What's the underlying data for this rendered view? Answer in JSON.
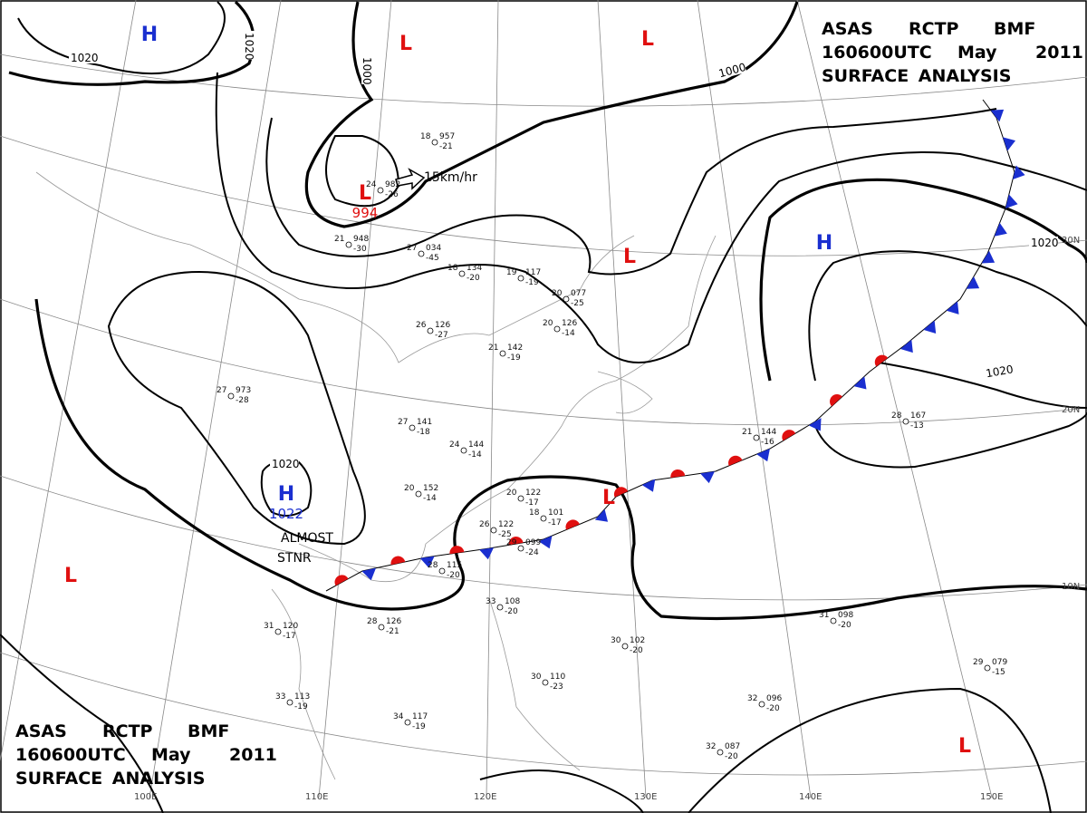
{
  "header_top": {
    "line1": [
      "ASAS",
      "RCTP",
      "BMF"
    ],
    "line2": [
      "160600UTC",
      "May",
      "2011"
    ],
    "line3": "SURFACE ANALYSIS"
  },
  "header_bottom": {
    "line1": [
      "ASAS",
      "RCTP",
      "BMF"
    ],
    "line2": [
      "160600UTC",
      "May",
      "2011"
    ],
    "line3": "SURFACE ANALYSIS"
  },
  "longitudes": [
    "100E",
    "110E",
    "120E",
    "130E",
    "140E",
    "150E"
  ],
  "latitudes": [
    "30N",
    "20N",
    "10N"
  ],
  "isobar_labels": [
    "1020",
    "1020",
    "1000",
    "1000",
    "1020",
    "1020",
    "1020"
  ],
  "centers": [
    {
      "symbol": "H"
    },
    {
      "symbol": "L"
    },
    {
      "symbol": "L"
    },
    {
      "symbol": "L",
      "pressure": "994"
    },
    {
      "symbol": "L"
    },
    {
      "symbol": "H"
    },
    {
      "symbol": "H",
      "pressure": "1022"
    },
    {
      "symbol": "L"
    },
    {
      "symbol": "L"
    },
    {
      "symbol": "L"
    }
  ],
  "annotations": {
    "motion": "15km/hr",
    "front_1": "ALMOST",
    "front_2": "STNR"
  },
  "stations": [
    {
      "temp": "27",
      "pressure": "141",
      "dew": "-18"
    },
    {
      "temp": "24",
      "pressure": "144",
      "dew": "-14"
    },
    {
      "temp": "20",
      "pressure": "152",
      "dew": "-14"
    },
    {
      "temp": "20",
      "pressure": "122",
      "dew": "-17"
    },
    {
      "temp": "18",
      "pressure": "101",
      "dew": "-17"
    },
    {
      "temp": "26",
      "pressure": "122",
      "dew": "-25"
    },
    {
      "temp": "29",
      "pressure": "099",
      "dew": "-24"
    },
    {
      "temp": "28",
      "pressure": "115",
      "dew": "-20"
    },
    {
      "temp": "28",
      "pressure": "126",
      "dew": "-21"
    },
    {
      "temp": "31",
      "pressure": "120",
      "dew": "-17"
    },
    {
      "temp": "33",
      "pressure": "113",
      "dew": "-19"
    },
    {
      "temp": "34",
      "pressure": "117",
      "dew": "-19"
    },
    {
      "temp": "33",
      "pressure": "108",
      "dew": "-20"
    },
    {
      "temp": "30",
      "pressure": "110",
      "dew": "-23"
    },
    {
      "temp": "30",
      "pressure": "102",
      "dew": "-20"
    },
    {
      "temp": "31",
      "pressure": "098",
      "dew": "-20"
    },
    {
      "temp": "32",
      "pressure": "096",
      "dew": "-20"
    },
    {
      "temp": "32",
      "pressure": "087",
      "dew": "-20"
    },
    {
      "temp": "29",
      "pressure": "079",
      "dew": "-15"
    },
    {
      "temp": "28",
      "pressure": "167",
      "dew": "-13"
    },
    {
      "temp": "21",
      "pressure": "144",
      "dew": "-16"
    },
    {
      "temp": "27",
      "pressure": "034",
      "dew": "-45"
    },
    {
      "temp": "18",
      "pressure": "134",
      "dew": "-20"
    },
    {
      "temp": "19",
      "pressure": "117",
      "dew": "-19"
    },
    {
      "temp": "20",
      "pressure": "077",
      "dew": "-25"
    },
    {
      "temp": "20",
      "pressure": "126",
      "dew": "-14"
    },
    {
      "temp": "26",
      "pressure": "126",
      "dew": "-27"
    },
    {
      "temp": "21",
      "pressure": "142",
      "dew": "-19"
    },
    {
      "temp": "27",
      "pressure": "973",
      "dew": "-28"
    },
    {
      "temp": "21",
      "pressure": "948",
      "dew": "-30"
    },
    {
      "temp": "24",
      "pressure": "982",
      "dew": "-26"
    },
    {
      "temp": "18",
      "pressure": "957",
      "dew": "-21"
    }
  ]
}
